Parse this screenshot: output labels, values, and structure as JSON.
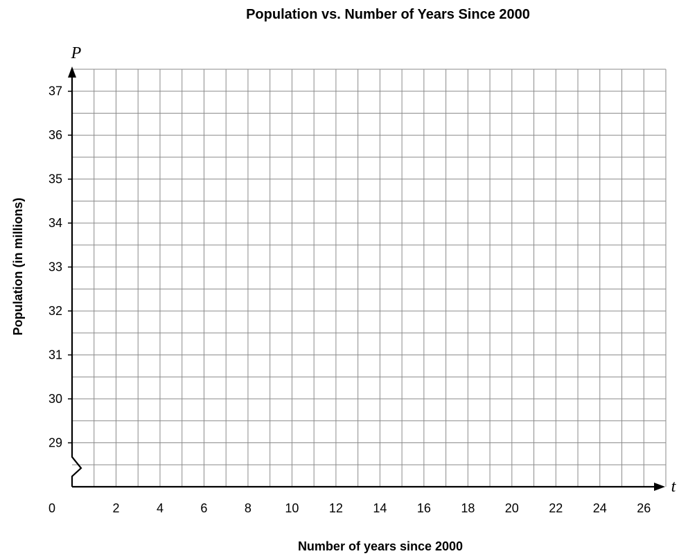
{
  "chart_data": {
    "type": "line",
    "title": "Population vs. Number of Years Since 2000",
    "xlabel": "Number of years since 2000",
    "ylabel": "Population (in millions)",
    "x_var": "t",
    "y_var": "P",
    "x_origin_label": "0",
    "xlim": [
      0,
      27
    ],
    "ylim": [
      28,
      37.5
    ],
    "x_ticks": [
      2,
      4,
      6,
      8,
      10,
      12,
      14,
      16,
      18,
      20,
      22,
      24,
      26
    ],
    "y_ticks": [
      29,
      30,
      31,
      32,
      33,
      34,
      35,
      36,
      37
    ],
    "x_grid_step": 1,
    "y_grid_step": 0.5,
    "y_axis_break": true,
    "grid": true,
    "series": []
  }
}
